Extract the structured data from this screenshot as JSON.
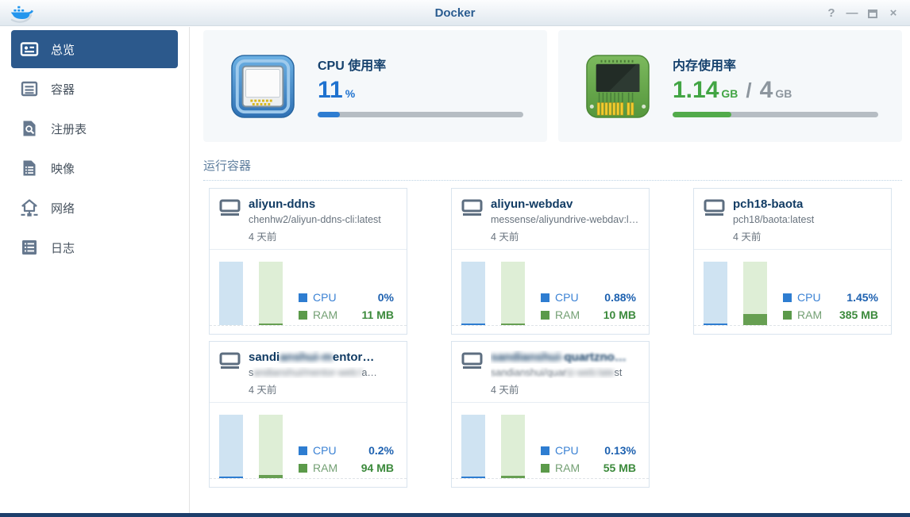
{
  "titlebar": {
    "title": "Docker",
    "help": "?",
    "minimize": "—",
    "close": "×"
  },
  "sidebar": {
    "items": [
      {
        "label": "总览"
      },
      {
        "label": "容器"
      },
      {
        "label": "注册表"
      },
      {
        "label": "映像"
      },
      {
        "label": "网络"
      },
      {
        "label": "日志"
      }
    ]
  },
  "stats": {
    "cpu": {
      "title": "CPU 使用率",
      "value": "11",
      "unit": "%",
      "percent": 11
    },
    "memory": {
      "title": "内存使用率",
      "used": "1.14",
      "used_unit": "GB",
      "separator": "/",
      "total": "4",
      "total_unit": "GB",
      "percent": 28.5
    }
  },
  "running": {
    "heading": "运行容器",
    "legend": {
      "cpu": "CPU",
      "ram": "RAM"
    },
    "containers": [
      {
        "name_pre": "aliyun-ddns",
        "name_mid": "",
        "name_post": "",
        "image_pre": "chenhw2/aliyun-ddns-cli:latest",
        "image_mid": "",
        "image_post": "",
        "age": "4 天前",
        "cpu_value": "0%",
        "ram_value": "11 MB",
        "cpu_fill": 0,
        "ram_fill": 3
      },
      {
        "name_pre": "aliyun-webdav",
        "name_mid": "",
        "name_post": "",
        "image_pre": "messense/aliyundrive-webdav:l…",
        "image_mid": "",
        "image_post": "",
        "age": "4 天前",
        "cpu_value": "0.88%",
        "ram_value": "10 MB",
        "cpu_fill": 2.5,
        "ram_fill": 2.5
      },
      {
        "name_pre": "pch18-baota",
        "name_mid": "",
        "name_post": "",
        "image_pre": "pch18/baota:latest",
        "image_mid": "",
        "image_post": "",
        "age": "4 天前",
        "cpu_value": "1.45%",
        "ram_value": "385 MB",
        "cpu_fill": 3,
        "ram_fill": 18
      },
      {
        "name_pre": "sandi",
        "name_mid": "anshui-m",
        "name_post": "entor…",
        "image_pre": "s",
        "image_mid": "andianshui/mentor-web:l",
        "image_post": "a…",
        "age": "4 天前",
        "cpu_value": "0.2%",
        "ram_value": "94 MB",
        "cpu_fill": 2.5,
        "ram_fill": 5
      },
      {
        "name_pre": "",
        "name_mid": "sandianshui-",
        "name_post": "quartzno…",
        "image_pre": "sandianshui/quar",
        "image_mid": "tz-web:late",
        "image_post": "st",
        "age": "4 天前",
        "cpu_value": "0.13%",
        "ram_value": "55 MB",
        "cpu_fill": 2.5,
        "ram_fill": 4
      }
    ]
  },
  "colors": {
    "accent_blue": "#2e7dd1",
    "accent_green": "#52ab4a",
    "nav_selected": "#2c598c",
    "title_navy": "#15416d",
    "bottom_border": "#1d3e6b",
    "cpu_bar_track": "#cfe3f2",
    "ram_bar_track": "#deeed6"
  }
}
